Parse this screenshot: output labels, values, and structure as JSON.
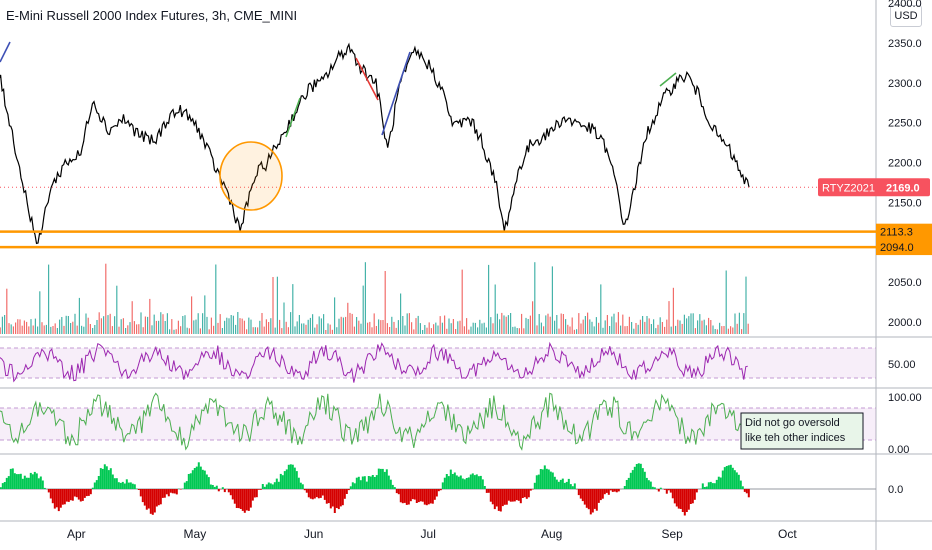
{
  "title": "E-Mini Russell 2000 Index Futures, 3h, CME_MINI",
  "currency_button": "USD",
  "colors": {
    "price": "#000000",
    "volume_up": "#26a69a",
    "volume_down": "#ef5350",
    "rsi": "#9c27b0",
    "osc2": "#4caf50",
    "support": "#ff9800",
    "last_price_badge": "#f7525f",
    "hist_pos": "#00c853",
    "hist_neg": "#d50000"
  },
  "chart_data": [
    {
      "type": "line",
      "name": "price",
      "x_tick_labels": [
        "Apr",
        "May",
        "Jun",
        "Jul",
        "Aug",
        "Sep",
        "Oct"
      ],
      "y_tick_labels": [
        "2400.0",
        "2350.0",
        "2300.0",
        "2250.0",
        "2200.0",
        "2150.0",
        "2050.0",
        "2000.0"
      ],
      "ylim": [
        1980,
        2400
      ],
      "anchors": [
        [
          "2021-03-08",
          2340
        ],
        [
          "2021-03-10",
          2380
        ],
        [
          "2021-03-13",
          2310
        ],
        [
          "2021-03-16",
          2245
        ],
        [
          "2021-03-19",
          2175
        ],
        [
          "2021-03-23",
          2094
        ],
        [
          "2021-03-26",
          2165
        ],
        [
          "2021-03-30",
          2200
        ],
        [
          "2021-04-03",
          2210
        ],
        [
          "2021-04-06",
          2280
        ],
        [
          "2021-04-10",
          2240
        ],
        [
          "2021-04-14",
          2255
        ],
        [
          "2021-04-18",
          2235
        ],
        [
          "2021-04-22",
          2225
        ],
        [
          "2021-04-26",
          2260
        ],
        [
          "2021-04-29",
          2265
        ],
        [
          "2021-05-03",
          2245
        ],
        [
          "2021-05-07",
          2200
        ],
        [
          "2021-05-11",
          2160
        ],
        [
          "2021-05-14",
          2115
        ],
        [
          "2021-05-18",
          2185
        ],
        [
          "2021-05-21",
          2200
        ],
        [
          "2021-05-25",
          2235
        ],
        [
          "2021-05-29",
          2270
        ],
        [
          "2021-06-01",
          2295
        ],
        [
          "2021-06-04",
          2300
        ],
        [
          "2021-06-08",
          2330
        ],
        [
          "2021-06-11",
          2345
        ],
        [
          "2021-06-14",
          2320
        ],
        [
          "2021-06-18",
          2300
        ],
        [
          "2021-06-21",
          2215
        ],
        [
          "2021-06-24",
          2295
        ],
        [
          "2021-06-28",
          2340
        ],
        [
          "2021-07-02",
          2320
        ],
        [
          "2021-07-05",
          2290
        ],
        [
          "2021-07-08",
          2245
        ],
        [
          "2021-07-12",
          2255
        ],
        [
          "2021-07-15",
          2230
        ],
        [
          "2021-07-19",
          2170
        ],
        [
          "2021-07-21",
          2113
        ],
        [
          "2021-07-25",
          2195
        ],
        [
          "2021-07-28",
          2225
        ],
        [
          "2021-08-01",
          2235
        ],
        [
          "2021-08-05",
          2255
        ],
        [
          "2021-08-09",
          2250
        ],
        [
          "2021-08-13",
          2240
        ],
        [
          "2021-08-16",
          2220
        ],
        [
          "2021-08-19",
          2170
        ],
        [
          "2021-08-21",
          2116
        ],
        [
          "2021-08-24",
          2180
        ],
        [
          "2021-08-27",
          2240
        ],
        [
          "2021-08-31",
          2280
        ],
        [
          "2021-09-03",
          2300
        ],
        [
          "2021-09-06",
          2310
        ],
        [
          "2021-09-09",
          2285
        ],
        [
          "2021-09-13",
          2240
        ],
        [
          "2021-09-17",
          2215
        ],
        [
          "2021-09-20",
          2185
        ],
        [
          "2021-09-22",
          2169
        ]
      ],
      "last_price": {
        "symbol": "RTYZ2021",
        "value": "2169.0"
      },
      "support_lines": [
        {
          "value": 2113.3,
          "label": "2113.3"
        },
        {
          "value": 2094.0,
          "label": "2094.0"
        }
      ]
    },
    {
      "type": "line",
      "name": "oscillator-1",
      "y_tick_labels": [
        "50.00"
      ]
    },
    {
      "type": "line",
      "name": "oscillator-2",
      "y_tick_labels": [
        "100.00",
        "0.00"
      ]
    },
    {
      "type": "area",
      "name": "histogram",
      "y_tick_labels": [
        "0.0"
      ]
    }
  ],
  "annotation": {
    "text_line1": "Did not go oversold",
    "text_line2": "like teh other indices"
  }
}
